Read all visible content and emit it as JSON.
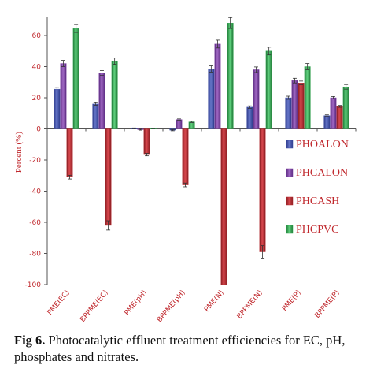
{
  "caption": {
    "label": "Fig 6.",
    "text": " Photocatalytic effluent treatment efficiencies for EC, pH, phosphates and nitrates."
  },
  "chart_data": {
    "type": "bar",
    "title": "",
    "xlabel": "",
    "ylabel": "Percent (%)",
    "ylim": [
      -100,
      70
    ],
    "yticks": [
      60,
      40,
      20,
      0,
      -20,
      -40,
      -60,
      -80,
      -100
    ],
    "categories": [
      "PME(EC)",
      "BPPME(EC)",
      "PME(pH)",
      "BPPME(pH)",
      "PME(N)",
      "BPPME(N)",
      "PME(P)",
      "BPPME(P)"
    ],
    "series": [
      {
        "name": "PHOALON",
        "color": "#3f4fa6",
        "values": [
          25.5,
          16,
          0.3,
          -0.8,
          38.5,
          14,
          20,
          8.5
        ],
        "errors": [
          1.2,
          0.8,
          0.3,
          0.4,
          2,
          0.8,
          1,
          0.5
        ]
      },
      {
        "name": "PHCALON",
        "color": "#7b3fa0",
        "values": [
          42,
          36,
          -0.5,
          6,
          54.5,
          38,
          31,
          20
        ],
        "errors": [
          2,
          1.5,
          0.3,
          0.4,
          2.5,
          1.8,
          1.5,
          0.8
        ]
      },
      {
        "name": "PHCASH",
        "color": "#b5282e",
        "values": [
          -31,
          -62,
          -16.5,
          -36,
          -100,
          -79,
          29.5,
          14.5
        ],
        "errors": [
          1.2,
          3,
          0.8,
          1.2,
          0,
          4,
          1.2,
          0.6
        ]
      },
      {
        "name": "PHCPVC",
        "color": "#2fa84f",
        "values": [
          64.5,
          43.5,
          0.3,
          4.5,
          68,
          50,
          40,
          27
        ],
        "errors": [
          2.5,
          2,
          0.2,
          0.4,
          3.5,
          2.5,
          2,
          1.5
        ]
      }
    ],
    "legend": {
      "placement": "right"
    },
    "grid": false
  }
}
